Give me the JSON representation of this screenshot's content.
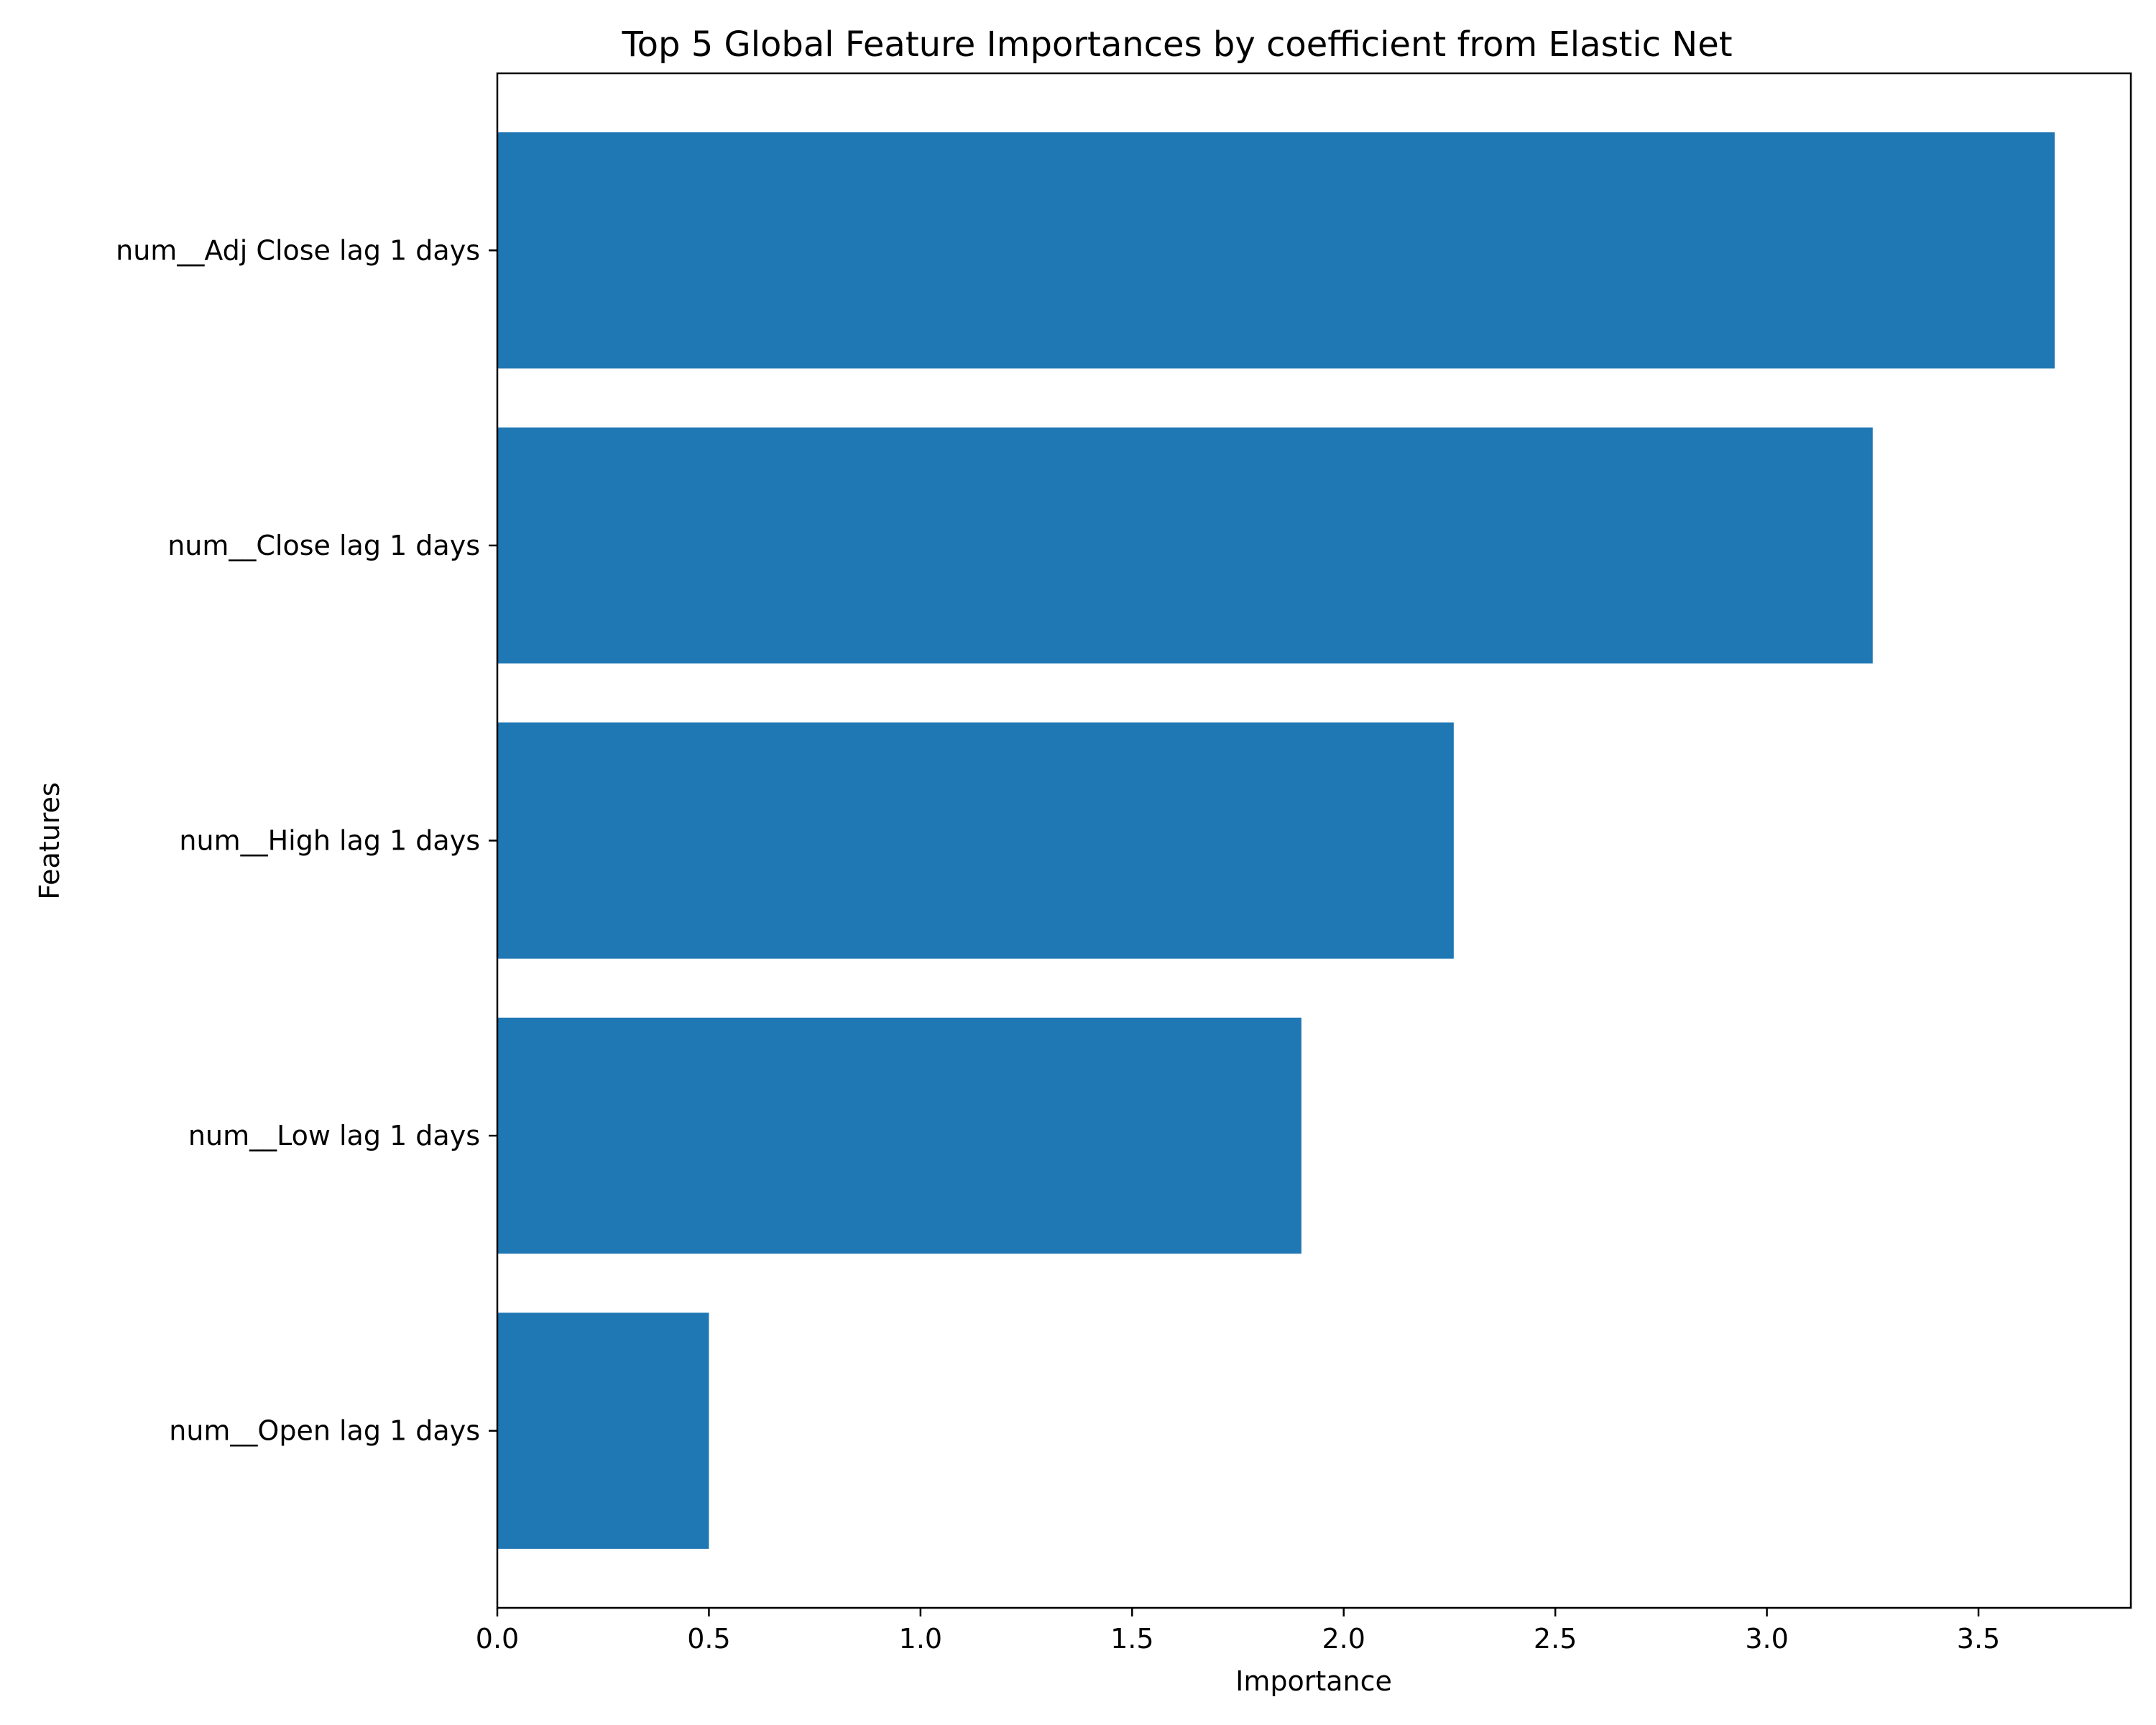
{
  "chart_data": {
    "type": "bar",
    "orientation": "horizontal",
    "title": "Top 5 Global Feature Importances by coefficient from Elastic Net",
    "xlabel": "Importance",
    "ylabel": "Features",
    "categories": [
      "num__Adj Close lag 1 days",
      "num__Close lag 1 days",
      "num__High lag 1 days",
      "num__Low lag 1 days",
      "num__Open lag 1 days"
    ],
    "values": [
      3.68,
      3.25,
      2.26,
      1.9,
      0.5
    ],
    "xlim": [
      0.0,
      3.86
    ],
    "xticks": [
      0.0,
      0.5,
      1.0,
      1.5,
      2.0,
      2.5,
      3.0,
      3.5
    ],
    "xtick_labels": [
      "0.0",
      "0.5",
      "1.0",
      "1.5",
      "2.0",
      "2.5",
      "3.0",
      "3.5"
    ],
    "grid": false,
    "legend": "none",
    "colors": {
      "bar": "#1f77b4",
      "axes": "#000000",
      "background": "#ffffff"
    }
  }
}
